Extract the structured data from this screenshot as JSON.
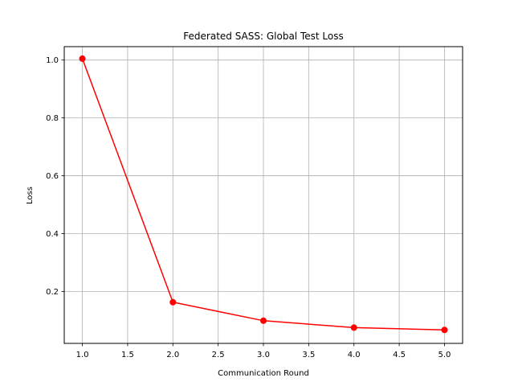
{
  "chart_data": {
    "type": "line",
    "title": "Federated SASS: Global Test Loss",
    "xlabel": "Communication Round",
    "ylabel": "Loss",
    "xlim": [
      0.8,
      5.2
    ],
    "ylim": [
      0.0206,
      1.0464
    ],
    "x_ticks": [
      1.0,
      1.5,
      2.0,
      2.5,
      3.0,
      3.5,
      4.0,
      4.5,
      5.0
    ],
    "x_tick_labels": [
      "1.0",
      "1.5",
      "2.0",
      "2.5",
      "3.0",
      "3.5",
      "4.0",
      "4.5",
      "5.0"
    ],
    "y_ticks": [
      0.2,
      0.4,
      0.6,
      0.8,
      1.0
    ],
    "y_tick_labels": [
      "0.2",
      "0.4",
      "0.6",
      "0.8",
      "1.0"
    ],
    "grid": true,
    "series": [
      {
        "color": "#ff0000",
        "marker": "circle",
        "x": [
          1,
          2,
          3,
          4,
          5
        ],
        "y": [
          1.005,
          0.163,
          0.099,
          0.075,
          0.067
        ]
      }
    ]
  }
}
